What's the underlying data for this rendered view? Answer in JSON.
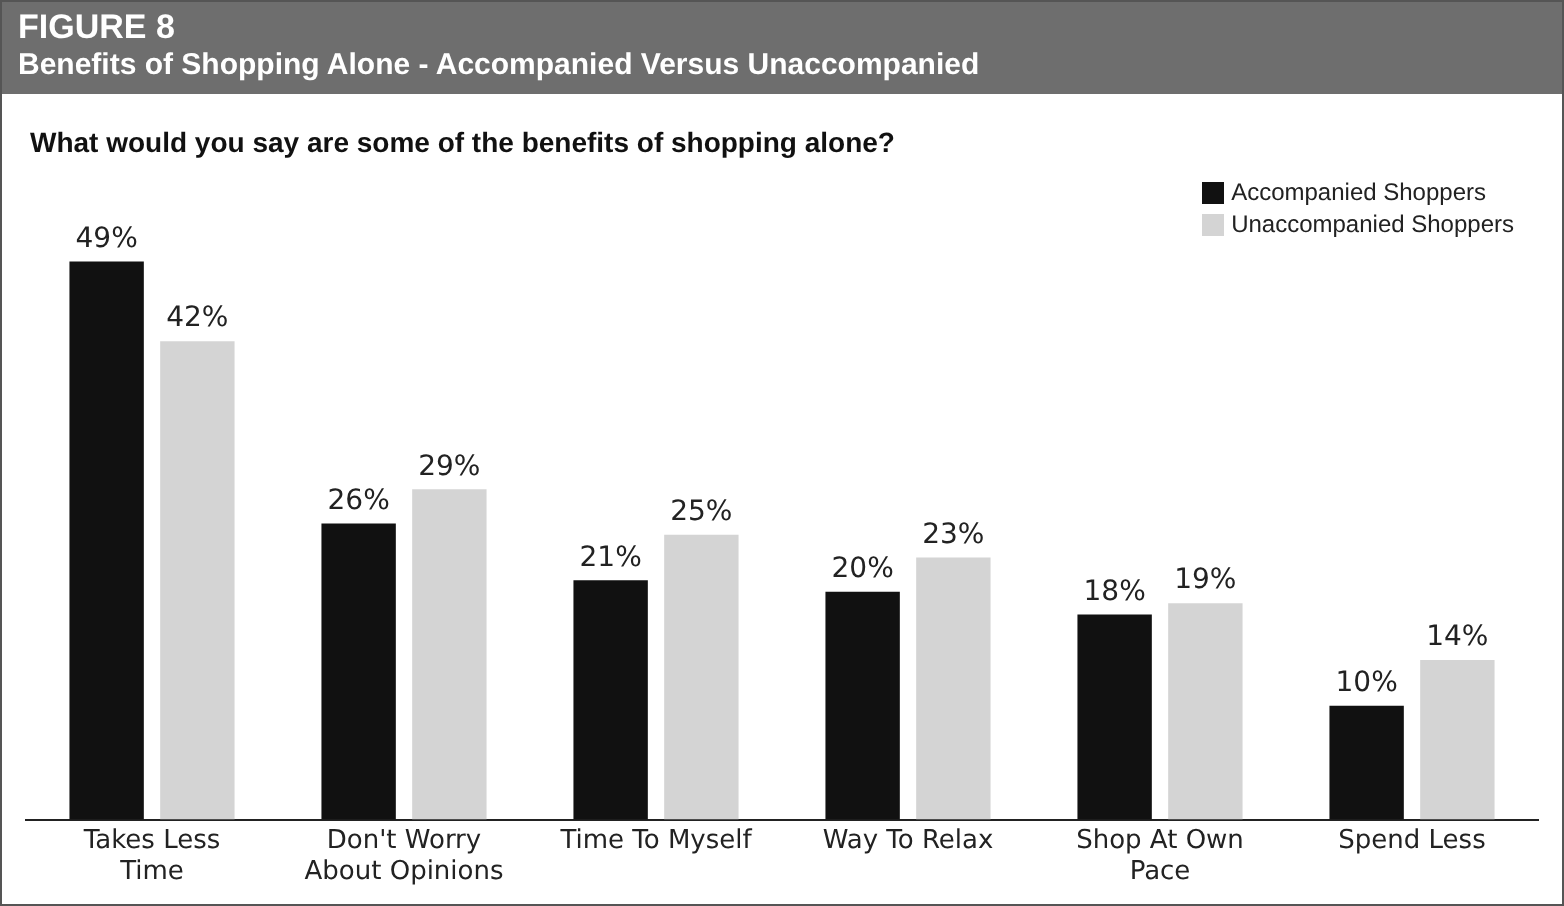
{
  "chart_data": {
    "type": "bar",
    "title": "FIGURE 8",
    "subtitle": "Benefits of Shopping Alone - Accompanied Versus Unaccompanied",
    "annotations": [
      "What would you say are some of the benefits of shopping alone?"
    ],
    "categories": [
      "Takes Less Time",
      "Don't Worry About Opinions",
      "Time To Myself",
      "Way To Relax",
      "Shop At Own Pace",
      "Spend Less"
    ],
    "series": [
      {
        "name": "Accompanied Shoppers",
        "color": "#111111",
        "values": [
          49,
          26,
          21,
          20,
          18,
          10
        ],
        "value_labels": [
          "49%",
          "26%",
          "21%",
          "20%",
          "18%",
          "10%"
        ]
      },
      {
        "name": "Unaccompanied Shoppers",
        "color": "#d4d4d4",
        "values": [
          42,
          29,
          25,
          23,
          19,
          14
        ],
        "value_labels": [
          "42%",
          "29%",
          "25%",
          "23%",
          "19%",
          "14%"
        ]
      }
    ],
    "legend": "top right",
    "grid": false,
    "tick_labels": "x"
  }
}
